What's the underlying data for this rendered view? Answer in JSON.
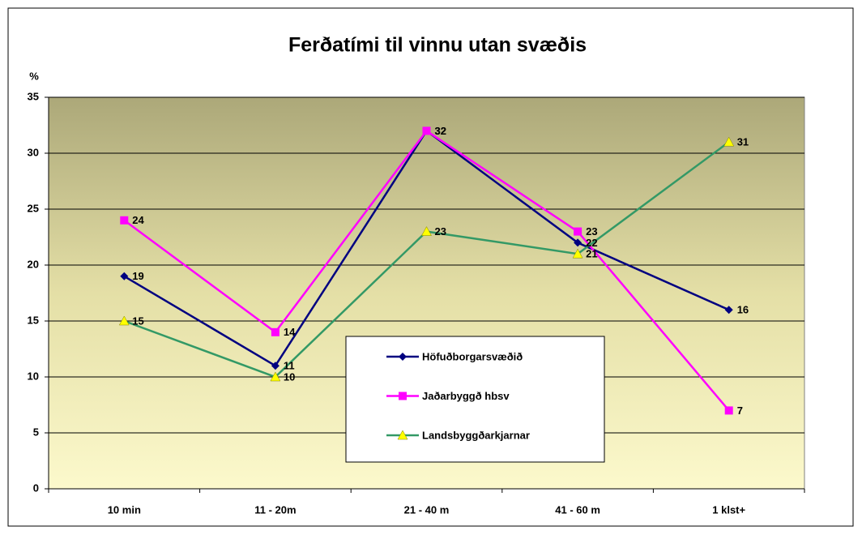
{
  "chart_data": {
    "type": "line",
    "title": "Ferðatími til vinnu utan svæðis",
    "y_label": "%",
    "categories": [
      "10 min",
      "11 - 20m",
      "21 - 40 m",
      "41 - 60 m",
      "1 klst+"
    ],
    "series": [
      {
        "name": "Höfuðborgarsvæðið",
        "color": "#000080",
        "marker": "diamond",
        "marker_color": "#000080",
        "values": [
          19,
          11,
          32,
          22,
          16
        ]
      },
      {
        "name": "Jaðarbyggð hbsv",
        "color": "#ff00ff",
        "marker": "square",
        "marker_color": "#ff00ff",
        "values": [
          24,
          14,
          32,
          23,
          7
        ]
      },
      {
        "name": "Landsbyggðarkjarnar",
        "color": "#339966",
        "marker": "triangle",
        "marker_color": "#ffff00",
        "values": [
          15,
          10,
          23,
          21,
          31
        ]
      }
    ],
    "ylim": [
      0,
      35
    ],
    "yticks": [
      0,
      5,
      10,
      15,
      20,
      25,
      30,
      35
    ],
    "grid": true
  }
}
